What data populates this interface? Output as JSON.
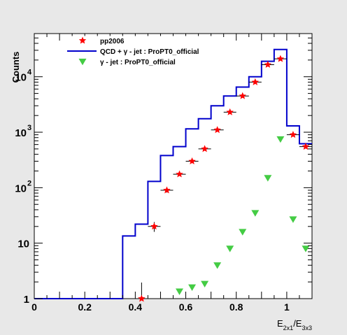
{
  "chart_data": {
    "type": "scatter",
    "title": "",
    "xlabel": "E2x1/E3x3",
    "xlabel_main": "E",
    "xlabel_sub1": "2x1",
    "xlabel_mid": "/E",
    "xlabel_sub2": "3x3",
    "ylabel": "Counts",
    "xlim": [
      0,
      1.1
    ],
    "ylim": [
      1,
      60000
    ],
    "yscale": "log",
    "grid": false,
    "legend_position": "top-left",
    "x_ticks": [
      {
        "value": 0,
        "label": "0"
      },
      {
        "value": 0.2,
        "label": "0.2"
      },
      {
        "value": 0.4,
        "label": "0.4"
      },
      {
        "value": 0.6,
        "label": "0.6"
      },
      {
        "value": 0.8,
        "label": "0.8"
      },
      {
        "value": 1.0,
        "label": "1"
      }
    ],
    "y_ticks": [
      {
        "value": 1,
        "base": "1",
        "exp": ""
      },
      {
        "value": 10,
        "base": "10",
        "exp": ""
      },
      {
        "value": 100,
        "base": "10",
        "exp": "2"
      },
      {
        "value": 1000,
        "base": "10",
        "exp": "3"
      },
      {
        "value": 10000,
        "base": "10",
        "exp": "4"
      }
    ],
    "legend": [
      {
        "label": "pp2006",
        "marker": "red-star"
      },
      {
        "label": "QCD + γ - jet : ProPT0_official",
        "marker": "blue-line"
      },
      {
        "label": "γ - jet : ProPT0_official",
        "marker": "green-triangle"
      }
    ],
    "series": [
      {
        "name": "pp2006",
        "kind": "points",
        "color": "#ff0000",
        "x": [
          0.425,
          0.475,
          0.525,
          0.575,
          0.625,
          0.675,
          0.725,
          0.775,
          0.825,
          0.875,
          0.925,
          0.975,
          1.025,
          1.075
        ],
        "y": [
          1,
          20,
          90,
          175,
          300,
          500,
          1100,
          2300,
          4500,
          8000,
          16500,
          21000,
          900,
          550
        ],
        "yerr_up": [
          0.95,
          4,
          8,
          10,
          15,
          25,
          50,
          80,
          120,
          180,
          250,
          300,
          50,
          40
        ],
        "yerr_down": [
          0,
          4,
          8,
          10,
          15,
          25,
          50,
          80,
          120,
          180,
          250,
          300,
          50,
          40
        ],
        "xerr": 0.025
      },
      {
        "name": "QCD + γ - jet : ProPT0_official",
        "kind": "step",
        "color": "#0000cc",
        "bin_edges": [
          0,
          0.05,
          0.1,
          0.15,
          0.2,
          0.25,
          0.3,
          0.35,
          0.4,
          0.45,
          0.5,
          0.55,
          0.6,
          0.65,
          0.7,
          0.75,
          0.8,
          0.85,
          0.9,
          0.95,
          1.0,
          1.05,
          1.1
        ],
        "values": [
          1,
          1,
          1,
          1,
          1,
          1,
          1,
          13.5,
          22,
          130,
          380,
          550,
          1150,
          1750,
          3000,
          4500,
          6500,
          10000,
          19000,
          31000,
          1300,
          620
        ]
      },
      {
        "name": "γ - jet : ProPT0_official",
        "kind": "points",
        "color": "#44cc44",
        "x": [
          0.575,
          0.625,
          0.675,
          0.725,
          0.775,
          0.825,
          0.875,
          0.925,
          0.975,
          1.025,
          1.075
        ],
        "y": [
          1.35,
          1.6,
          1.85,
          4,
          8,
          16,
          35,
          150,
          750,
          27,
          8
        ]
      }
    ]
  }
}
